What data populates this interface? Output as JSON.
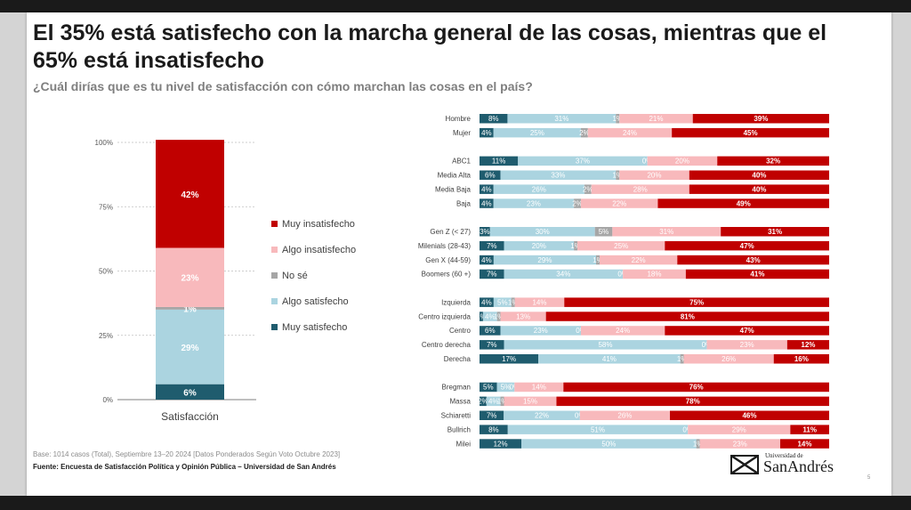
{
  "title": "El 35% está satisfecho con la marcha general de las cosas, mientras que el 65% está insatisfecho",
  "subtitle": "¿Cuál dirías que es tu nivel de satisfacción con cómo marchan las cosas en el país?",
  "base_note": "Base: 1014 casos (Total), Septiembre 13–20 2024 [Datos Ponderados Según Voto Octubre 2023]",
  "source_note": "Fuente: Encuesta de Satisfacción Política y Opinión Pública – Universidad de San Andrés",
  "logo": {
    "small": "Universidad de",
    "big": "SanAndrés"
  },
  "page_number": "5",
  "colors": {
    "muy_insatisfecho": "#c00000",
    "algo_insatisfecho": "#f8b9bc",
    "no_se": "#a6a6a6",
    "algo_satisfecho": "#abd4e0",
    "muy_satisfecho": "#1f5c6e"
  },
  "chart_data": [
    {
      "type": "bar",
      "stacked": true,
      "orientation": "vertical",
      "categories": [
        "Satisfacción"
      ],
      "ylim": [
        0,
        100
      ],
      "yticks": [
        "0%",
        "25%",
        "50%",
        "75%",
        "100%"
      ],
      "legend_position": "right",
      "grid": true,
      "series": [
        {
          "name": "Muy satisfecho",
          "values": [
            6
          ],
          "label": "6%"
        },
        {
          "name": "Algo satisfecho",
          "values": [
            29
          ],
          "label": "29%"
        },
        {
          "name": "No sé",
          "values": [
            1
          ],
          "label": "1%"
        },
        {
          "name": "Algo insatisfecho",
          "values": [
            23
          ],
          "label": "23%"
        },
        {
          "name": "Muy insatisfecho",
          "values": [
            42
          ],
          "label": "42%"
        }
      ],
      "legend": [
        "Muy insatisfecho",
        "Algo insatisfecho",
        "No sé",
        "Algo satisfecho",
        "Muy satisfecho"
      ]
    },
    {
      "type": "bar",
      "stacked": true,
      "orientation": "horizontal",
      "xlim": [
        0,
        100
      ],
      "series_order": [
        "Muy satisfecho",
        "Algo satisfecho",
        "No sé",
        "Algo insatisfecho",
        "Muy insatisfecho"
      ],
      "groups": [
        {
          "rows": [
            {
              "label": "Hombre",
              "values": [
                8,
                31,
                1,
                21,
                39
              ]
            },
            {
              "label": "Mujer",
              "values": [
                4,
                25,
                2,
                24,
                45
              ]
            }
          ]
        },
        {
          "rows": [
            {
              "label": "ABC1",
              "values": [
                11,
                37,
                0,
                20,
                32
              ]
            },
            {
              "label": "Media Alta",
              "values": [
                6,
                33,
                1,
                20,
                40
              ]
            },
            {
              "label": "Media Baja",
              "values": [
                4,
                26,
                2,
                28,
                40
              ]
            },
            {
              "label": "Baja",
              "values": [
                4,
                23,
                2,
                22,
                49
              ]
            }
          ]
        },
        {
          "rows": [
            {
              "label": "Gen Z (< 27)",
              "values": [
                3,
                30,
                5,
                31,
                31
              ]
            },
            {
              "label": "Milenials (28-43)",
              "values": [
                7,
                20,
                1,
                25,
                47
              ]
            },
            {
              "label": "Gen X (44-59)",
              "values": [
                4,
                29,
                1,
                22,
                43
              ]
            },
            {
              "label": "Boomers (60 +)",
              "values": [
                7,
                34,
                0,
                18,
                41
              ]
            }
          ]
        },
        {
          "rows": [
            {
              "label": "Izquierda",
              "values": [
                4,
                5,
                1,
                14,
                75
              ]
            },
            {
              "label": "Centro izquierda",
              "values": [
                1,
                4,
                1,
                13,
                81
              ]
            },
            {
              "label": "Centro",
              "values": [
                6,
                23,
                0,
                24,
                47
              ]
            },
            {
              "label": "Centro derecha",
              "values": [
                7,
                58,
                0,
                23,
                12
              ]
            },
            {
              "label": "Derecha",
              "values": [
                17,
                41,
                1,
                26,
                16
              ]
            }
          ]
        },
        {
          "rows": [
            {
              "label": "Bregman",
              "values": [
                5,
                5,
                0,
                14,
                76
              ]
            },
            {
              "label": "Massa",
              "values": [
                2,
                4,
                1,
                15,
                78
              ]
            },
            {
              "label": "Schiaretti",
              "values": [
                7,
                22,
                0,
                26,
                46
              ]
            },
            {
              "label": "Bullrich",
              "values": [
                8,
                51,
                0,
                29,
                11
              ]
            },
            {
              "label": "Milei",
              "values": [
                12,
                50,
                1,
                23,
                14
              ]
            }
          ]
        }
      ]
    }
  ]
}
